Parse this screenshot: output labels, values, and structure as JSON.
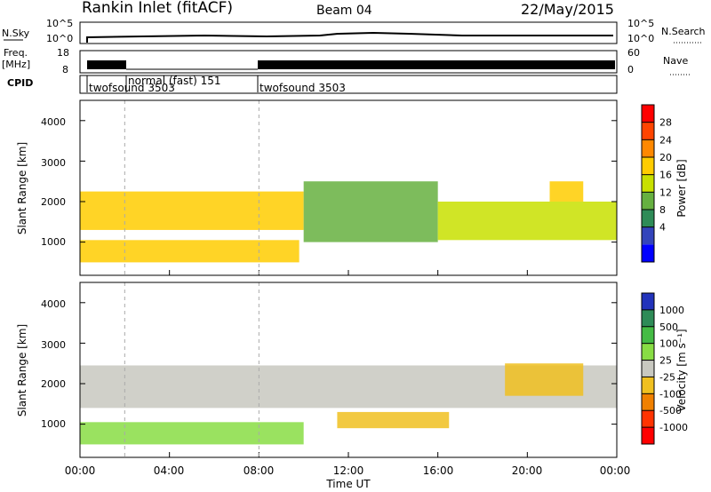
{
  "header": {
    "station": "Rankin Inlet (fitACF)",
    "beam": "Beam 04",
    "date": "22/May/2015"
  },
  "strip_panels": {
    "nsky": {
      "label": "N.Sky",
      "ticks": [
        "10^5",
        "10^0"
      ],
      "right_label": "N.Search",
      "right_ticks": [
        "10^5",
        "10^0"
      ]
    },
    "freq": {
      "label_line1": "Freq.",
      "label_line2": "[MHz]",
      "ticks": [
        "18",
        "8"
      ],
      "right_label": "Nave",
      "right_ticks": [
        "60",
        "0"
      ]
    },
    "cpid": {
      "label": "CPID",
      "segments": [
        {
          "label": "twofsound 3503",
          "start_hour": 0,
          "end_hour": 2
        },
        {
          "label": "normal (fast) 151",
          "start_hour": 2,
          "end_hour": 8
        },
        {
          "label": "twofsound 3503",
          "start_hour": 8,
          "end_hour": 24
        }
      ]
    }
  },
  "power_panel": {
    "ylabel": "Slant Range [km]",
    "yticks": [
      "4000",
      "3000",
      "2000",
      "1000"
    ],
    "cbar_label": "Power [dB]",
    "cbar_ticks": [
      "28",
      "24",
      "20",
      "16",
      "12",
      "8",
      "4"
    ],
    "cbar_colors": [
      "#ff0000",
      "#ff4400",
      "#ff8800",
      "#ffcc00",
      "#c8e000",
      "#66b040",
      "#2e8b57",
      "#3344bb",
      "#0000ff"
    ]
  },
  "velocity_panel": {
    "ylabel": "Slant Range [km]",
    "yticks": [
      "4000",
      "3000",
      "2000",
      "1000"
    ],
    "cbar_label": "Velocity [m s⁻¹]",
    "cbar_ticks": [
      "1000",
      "500",
      "100",
      "25",
      "-25",
      "-100",
      "-500",
      "-1000"
    ],
    "cbar_colors": [
      "#2233bb",
      "#2e8b57",
      "#44bb44",
      "#88dd44",
      "#c8c8c0",
      "#f0c020",
      "#f08000",
      "#ff3300",
      "#ff0000"
    ]
  },
  "xaxis": {
    "label": "Time UT",
    "ticks": [
      "00:00",
      "04:00",
      "08:00",
      "12:00",
      "16:00",
      "20:00",
      "00:00"
    ]
  },
  "chart_data": {
    "type": "heatmap",
    "title": "Rankin Inlet (fitACF) Beam 04 22/May/2015",
    "xlabel": "Time UT",
    "ylabel": "Slant Range [km]",
    "x_range_hours": [
      0,
      24
    ],
    "ylim_km": [
      180,
      4500
    ],
    "power": {
      "units": "dB",
      "scale_range": [
        0,
        30
      ],
      "bands": [
        {
          "t_start": 0.0,
          "t_end": 10.0,
          "range_start_km": 1300,
          "range_end_km": 2250,
          "value": 18
        },
        {
          "t_start": 0.0,
          "t_end": 9.8,
          "range_start_km": 500,
          "range_end_km": 1050,
          "value": 20
        },
        {
          "t_start": 10.0,
          "t_end": 16.0,
          "range_start_km": 1000,
          "range_end_km": 2500,
          "value": 10
        },
        {
          "t_start": 16.0,
          "t_end": 24.0,
          "range_start_km": 1050,
          "range_end_km": 2000,
          "value": 16
        },
        {
          "t_start": 21.0,
          "t_end": 22.5,
          "range_start_km": 2000,
          "range_end_km": 2500,
          "value": 20
        }
      ]
    },
    "velocity": {
      "units": "m s-1",
      "scale_range": [
        -1000,
        1000
      ],
      "bands": [
        {
          "t_start": 0.0,
          "t_end": 24.0,
          "range_start_km": 1400,
          "range_end_km": 2450,
          "value": 0
        },
        {
          "t_start": 0.0,
          "t_end": 10.0,
          "range_start_km": 500,
          "range_end_km": 1050,
          "value": 150
        },
        {
          "t_start": 11.5,
          "t_end": 16.5,
          "range_start_km": 900,
          "range_end_km": 1300,
          "value": -200
        },
        {
          "t_start": 19.0,
          "t_end": 22.5,
          "range_start_km": 1700,
          "range_end_km": 2500,
          "value": -150
        }
      ]
    }
  }
}
